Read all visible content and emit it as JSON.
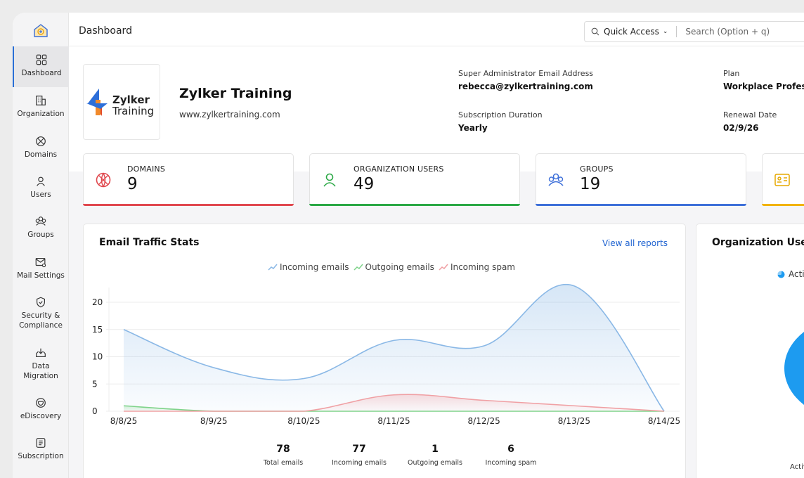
{
  "topbar": {
    "title": "Dashboard",
    "quick_access": "Quick Access",
    "search_placeholder": "Search (Option + q)"
  },
  "sidebar": {
    "items": [
      {
        "label": "Dashboard",
        "icon": "dashboard-icon",
        "active": true
      },
      {
        "label": "Organization",
        "icon": "building-icon"
      },
      {
        "label": "Domains",
        "icon": "globe-icon"
      },
      {
        "label": "Users",
        "icon": "user-icon"
      },
      {
        "label": "Groups",
        "icon": "group-icon"
      },
      {
        "label": "Mail Settings",
        "icon": "mail-settings-icon"
      },
      {
        "label": "Security &\nCompliance",
        "label_line1": "Security &",
        "label_line2": "Compliance",
        "icon": "shield-icon"
      },
      {
        "label": "Data Migration",
        "label_line1": "Data",
        "label_line2": "Migration",
        "icon": "migration-icon"
      },
      {
        "label": "eDiscovery",
        "icon": "ediscovery-icon"
      },
      {
        "label": "Subscription",
        "icon": "subscription-icon"
      }
    ]
  },
  "org": {
    "logo_line1": "Zylker",
    "logo_line2": "Training",
    "name": "Zylker Training",
    "url": "www.zylkertraining.com",
    "admin_label": "Super Administrator Email Address",
    "admin_value": "rebecca@zylkertraining.com",
    "duration_label": "Subscription Duration",
    "duration_value": "Yearly",
    "plan_label": "Plan",
    "plan_value": "Workplace Professi",
    "renewal_label": "Renewal Date",
    "renewal_value": "02/9/26"
  },
  "stats": [
    {
      "label": "DOMAINS",
      "value": "9",
      "color": "#e0484e"
    },
    {
      "label": "ORGANIZATION USERS",
      "value": "49",
      "color": "#2aa845"
    },
    {
      "label": "GROUPS",
      "value": "19",
      "color": "#3d6fd9"
    },
    {
      "label": "",
      "value": "",
      "color": "#f2b300"
    }
  ],
  "traffic": {
    "title": "Email Traffic Stats",
    "view_all": "View all reports",
    "totals": [
      {
        "value": "78",
        "label": "Total emails"
      },
      {
        "value": "77",
        "label": "Incoming emails"
      },
      {
        "value": "1",
        "label": "Outgoing emails"
      },
      {
        "value": "6",
        "label": "Incoming spam"
      }
    ]
  },
  "org_users": {
    "title": "Organization Users",
    "legend_partial": "Acti",
    "bottom_label_partial": "Activ"
  },
  "chart_data": {
    "type": "area",
    "x": [
      "8/8/25",
      "8/9/25",
      "8/10/25",
      "8/11/25",
      "8/12/25",
      "8/13/25",
      "8/14/25"
    ],
    "y_ticks": [
      0,
      5,
      10,
      15,
      20
    ],
    "ylim": [
      0,
      24
    ],
    "legend_position": "top",
    "series": [
      {
        "name": "Incoming emails",
        "values": [
          15,
          8,
          6,
          13,
          12,
          23,
          0
        ],
        "color": "#8ab8e6"
      },
      {
        "name": "Outgoing emails",
        "values": [
          1,
          0,
          0,
          0,
          0,
          0,
          0
        ],
        "color": "#7fd38a"
      },
      {
        "name": "Incoming spam",
        "values": [
          0,
          0,
          0,
          3,
          2,
          1,
          0
        ],
        "color": "#f0a0a4"
      }
    ]
  }
}
